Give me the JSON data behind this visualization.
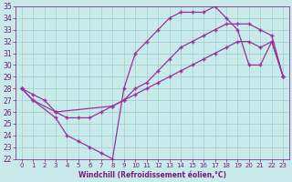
{
  "line1_x": [
    0,
    1,
    3,
    4,
    5,
    6,
    7,
    8,
    9,
    10,
    11,
    12,
    13,
    14,
    15,
    16,
    17,
    18,
    19,
    20,
    21,
    22,
    23
  ],
  "line1_y": [
    28,
    27,
    25.5,
    24,
    23.5,
    23,
    22.5,
    22,
    28,
    31,
    32,
    33,
    34,
    34.5,
    34.5,
    34.5,
    35,
    34,
    33,
    30,
    30,
    32,
    29
  ],
  "line2_x": [
    0,
    1,
    2,
    3,
    4,
    5,
    6,
    7,
    8,
    9,
    10,
    11,
    12,
    13,
    14,
    15,
    16,
    17,
    18,
    19,
    20,
    21,
    22,
    23
  ],
  "line2_y": [
    28,
    27.5,
    27,
    26,
    25.5,
    25.5,
    25.5,
    26,
    26.5,
    27,
    28,
    28.5,
    29.5,
    30.5,
    31.5,
    32,
    32.5,
    33,
    33.5,
    33.5,
    33.5,
    33,
    32.5,
    29
  ],
  "line3_x": [
    0,
    1,
    3,
    8,
    9,
    10,
    11,
    12,
    13,
    14,
    15,
    16,
    17,
    18,
    19,
    20,
    21,
    22,
    23
  ],
  "line3_y": [
    28,
    27,
    26,
    26.5,
    27,
    27.5,
    28,
    28.5,
    29,
    29.5,
    30,
    30.5,
    31,
    31.5,
    32,
    32,
    31.5,
    32,
    29
  ],
  "line_color": "#993399",
  "bg_color": "#c8eaea",
  "fig_bg": "#c8eaea",
  "xlabel": "Windchill (Refroidissement éolien,°C)",
  "xlim": [
    -0.5,
    23.5
  ],
  "ylim": [
    22,
    35
  ],
  "yticks": [
    22,
    23,
    24,
    25,
    26,
    27,
    28,
    29,
    30,
    31,
    32,
    33,
    34,
    35
  ],
  "xticks": [
    0,
    1,
    2,
    3,
    4,
    5,
    6,
    7,
    8,
    9,
    10,
    11,
    12,
    13,
    14,
    15,
    16,
    17,
    18,
    19,
    20,
    21,
    22,
    23
  ],
  "label_color": "#7a1a7a",
  "tick_color": "#7a1a7a",
  "grid_color": "#a0cccc"
}
